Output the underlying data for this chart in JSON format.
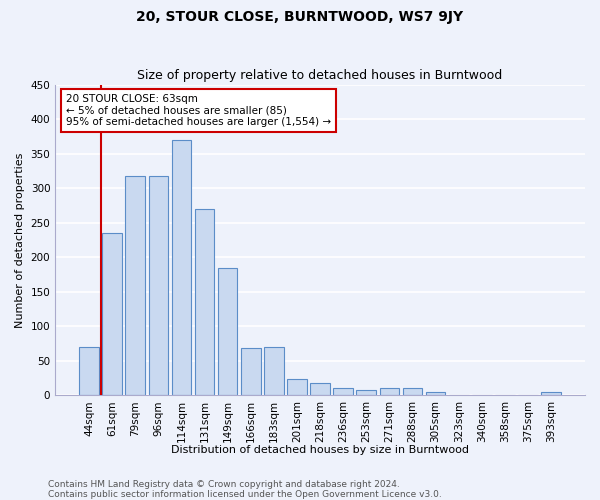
{
  "title": "20, STOUR CLOSE, BURNTWOOD, WS7 9JY",
  "subtitle": "Size of property relative to detached houses in Burntwood",
  "xlabel": "Distribution of detached houses by size in Burntwood",
  "ylabel": "Number of detached properties",
  "categories": [
    "44sqm",
    "61sqm",
    "79sqm",
    "96sqm",
    "114sqm",
    "131sqm",
    "149sqm",
    "166sqm",
    "183sqm",
    "201sqm",
    "218sqm",
    "236sqm",
    "253sqm",
    "271sqm",
    "288sqm",
    "305sqm",
    "323sqm",
    "340sqm",
    "358sqm",
    "375sqm",
    "393sqm"
  ],
  "values": [
    70,
    235,
    318,
    318,
    370,
    270,
    185,
    68,
    70,
    23,
    18,
    10,
    7,
    11,
    11,
    5,
    0,
    0,
    0,
    0,
    5
  ],
  "bar_color": "#c9d9f0",
  "bar_edge_color": "#5b8dc8",
  "background_color": "#eef2fb",
  "grid_color": "#ffffff",
  "property_line_color": "#cc0000",
  "annotation_text": "20 STOUR CLOSE: 63sqm\n← 5% of detached houses are smaller (85)\n95% of semi-detached houses are larger (1,554) →",
  "annotation_box_color": "#ffffff",
  "annotation_box_edge": "#cc0000",
  "ylim": [
    0,
    450
  ],
  "yticks": [
    0,
    50,
    100,
    150,
    200,
    250,
    300,
    350,
    400,
    450
  ],
  "footer": "Contains HM Land Registry data © Crown copyright and database right 2024.\nContains public sector information licensed under the Open Government Licence v3.0.",
  "title_fontsize": 10,
  "subtitle_fontsize": 9,
  "ylabel_fontsize": 8,
  "xlabel_fontsize": 8,
  "tick_fontsize": 7.5,
  "annotation_fontsize": 7.5,
  "footer_fontsize": 6.5
}
